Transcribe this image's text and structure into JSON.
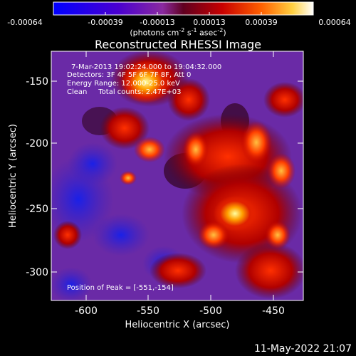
{
  "plot": {
    "title": "Reconstructed RHESSI Image",
    "x_axis_label": "Heliocentric X (arcsec)",
    "y_axis_label": "Heliocentric Y (arcsec)",
    "x_ticks": [
      "-600",
      "-550",
      "-500",
      "-450"
    ],
    "y_ticks": [
      "-150",
      "-200",
      "-250",
      "-300"
    ],
    "info_lines": [
      "7-Mar-2013 19:02:24.000 to 19:04:32.000",
      "Detectors: 3F 4F 5F 6F 7F 8F, Att 0",
      "Energy Range: 12.000-25.0 keV",
      "Clean     Total counts: 2.47E+03"
    ],
    "peak_text": "Position of Peak = [-551,-154]"
  },
  "colorbar": {
    "tick_labels": [
      "-0.00064",
      "-0.00039",
      "-0.00013",
      "0.00013",
      "0.00039",
      "0.00064"
    ],
    "unit_prefix": "(photons cm",
    "unit_sup1": "-2",
    "unit_mid": " s",
    "unit_sup2": "-1",
    "unit_mid2": " asec",
    "unit_sup3": "-2",
    "unit_suffix": ")"
  },
  "footer": {
    "date": "11-May-2022 21:07"
  },
  "colors": {
    "background": "#000000",
    "text": "#ffffff",
    "map_low": "#1a10d0",
    "map_mid": "#7a2a9a",
    "map_high": "#ff4a00",
    "map_peak": "#ffffb0"
  }
}
